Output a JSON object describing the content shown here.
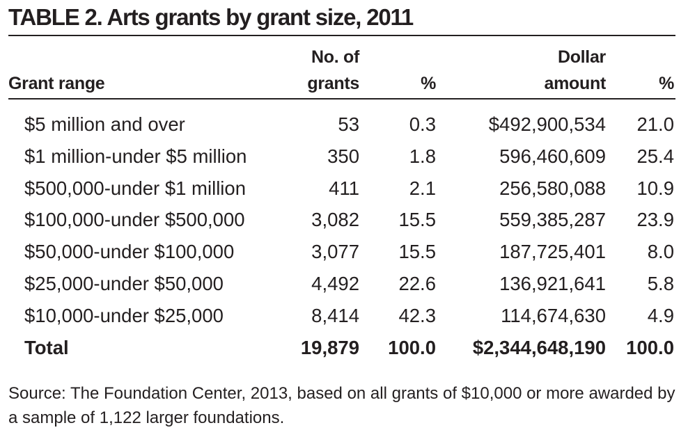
{
  "title": "TABLE 2. Arts grants by grant size, 2011",
  "headers": {
    "grant_range": "Grant range",
    "num_grants_line1": "No. of",
    "num_grants_line2": "grants",
    "pct1": "%",
    "dollar_line1": "Dollar",
    "dollar_line2": "amount",
    "pct2": "%"
  },
  "rows": [
    {
      "range": "$5 million and over",
      "grants": "53",
      "pct_grants": "0.3",
      "amount": "$492,900,534",
      "pct_amount": "21.0"
    },
    {
      "range": "$1 million-under $5 million",
      "grants": "350",
      "pct_grants": "1.8",
      "amount": "596,460,609",
      "pct_amount": "25.4"
    },
    {
      "range": "$500,000-under $1 million",
      "grants": "411",
      "pct_grants": "2.1",
      "amount": "256,580,088",
      "pct_amount": "10.9"
    },
    {
      "range": "$100,000-under $500,000",
      "grants": "3,082",
      "pct_grants": "15.5",
      "amount": "559,385,287",
      "pct_amount": "23.9"
    },
    {
      "range": "$50,000-under $100,000",
      "grants": "3,077",
      "pct_grants": "15.5",
      "amount": "187,725,401",
      "pct_amount": "8.0"
    },
    {
      "range": "$25,000-under $50,000",
      "grants": "4,492",
      "pct_grants": "22.6",
      "amount": "136,921,641",
      "pct_amount": "5.8"
    },
    {
      "range": "$10,000-under $25,000",
      "grants": "8,414",
      "pct_grants": "42.3",
      "amount": "114,674,630",
      "pct_amount": "4.9"
    }
  ],
  "total": {
    "range": "Total",
    "grants": "19,879",
    "pct_grants": "100.0",
    "amount": "$2,344,648,190",
    "pct_amount": "100.0"
  },
  "source": "Source: The Foundation Center, 2013, based on all grants of $10,000 or more awarded by a sample of 1,122 larger foundations."
}
